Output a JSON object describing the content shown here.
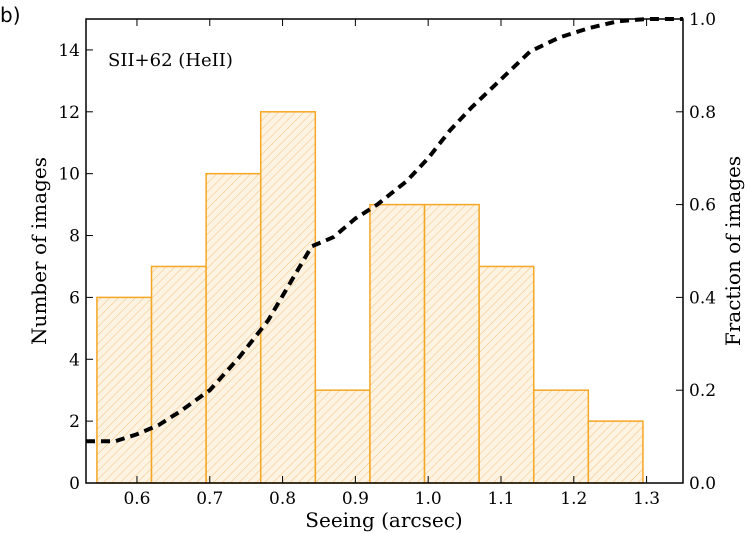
{
  "chart_data": {
    "type": "bar",
    "panel_label": "b)",
    "annotation": "SII+62 (HeII)",
    "xlabel": "Seeing (arcsec)",
    "ylabel": "Number of images",
    "y2label": "Fraction of images",
    "xlim": [
      0.53,
      1.35
    ],
    "ylim": [
      0,
      15
    ],
    "y2lim": [
      0,
      1.0
    ],
    "x_ticks": [
      "0.6",
      "0.7",
      "0.8",
      "0.9",
      "1.0",
      "1.1",
      "1.2",
      "1.3"
    ],
    "y_ticks": [
      "0",
      "2",
      "4",
      "6",
      "8",
      "10",
      "12",
      "14"
    ],
    "y2_ticks": [
      "0.0",
      "0.2",
      "0.4",
      "0.6",
      "0.8",
      "1.0"
    ],
    "histogram": {
      "bin_edges": [
        0.545,
        0.62,
        0.695,
        0.77,
        0.845,
        0.92,
        0.995,
        1.07,
        1.145,
        1.22,
        1.295
      ],
      "counts": [
        6,
        7,
        10,
        12,
        3,
        9,
        9,
        7,
        3,
        2
      ],
      "edge_color": "#f5a623",
      "fill_color": "#fdf3e3",
      "hatch": "////"
    },
    "cumulative": {
      "axis": "right",
      "style": "dashed",
      "color": "#000000",
      "x": [
        0.53,
        0.57,
        0.6,
        0.63,
        0.66,
        0.7,
        0.74,
        0.78,
        0.81,
        0.84,
        0.87,
        0.9,
        0.93,
        0.97,
        1.0,
        1.03,
        1.06,
        1.1,
        1.14,
        1.18,
        1.22,
        1.26,
        1.3,
        1.35
      ],
      "y": [
        0.09,
        0.09,
        0.105,
        0.125,
        0.155,
        0.2,
        0.27,
        0.35,
        0.43,
        0.51,
        0.53,
        0.57,
        0.6,
        0.65,
        0.7,
        0.76,
        0.81,
        0.87,
        0.93,
        0.96,
        0.98,
        0.995,
        1.0,
        1.0
      ]
    }
  }
}
